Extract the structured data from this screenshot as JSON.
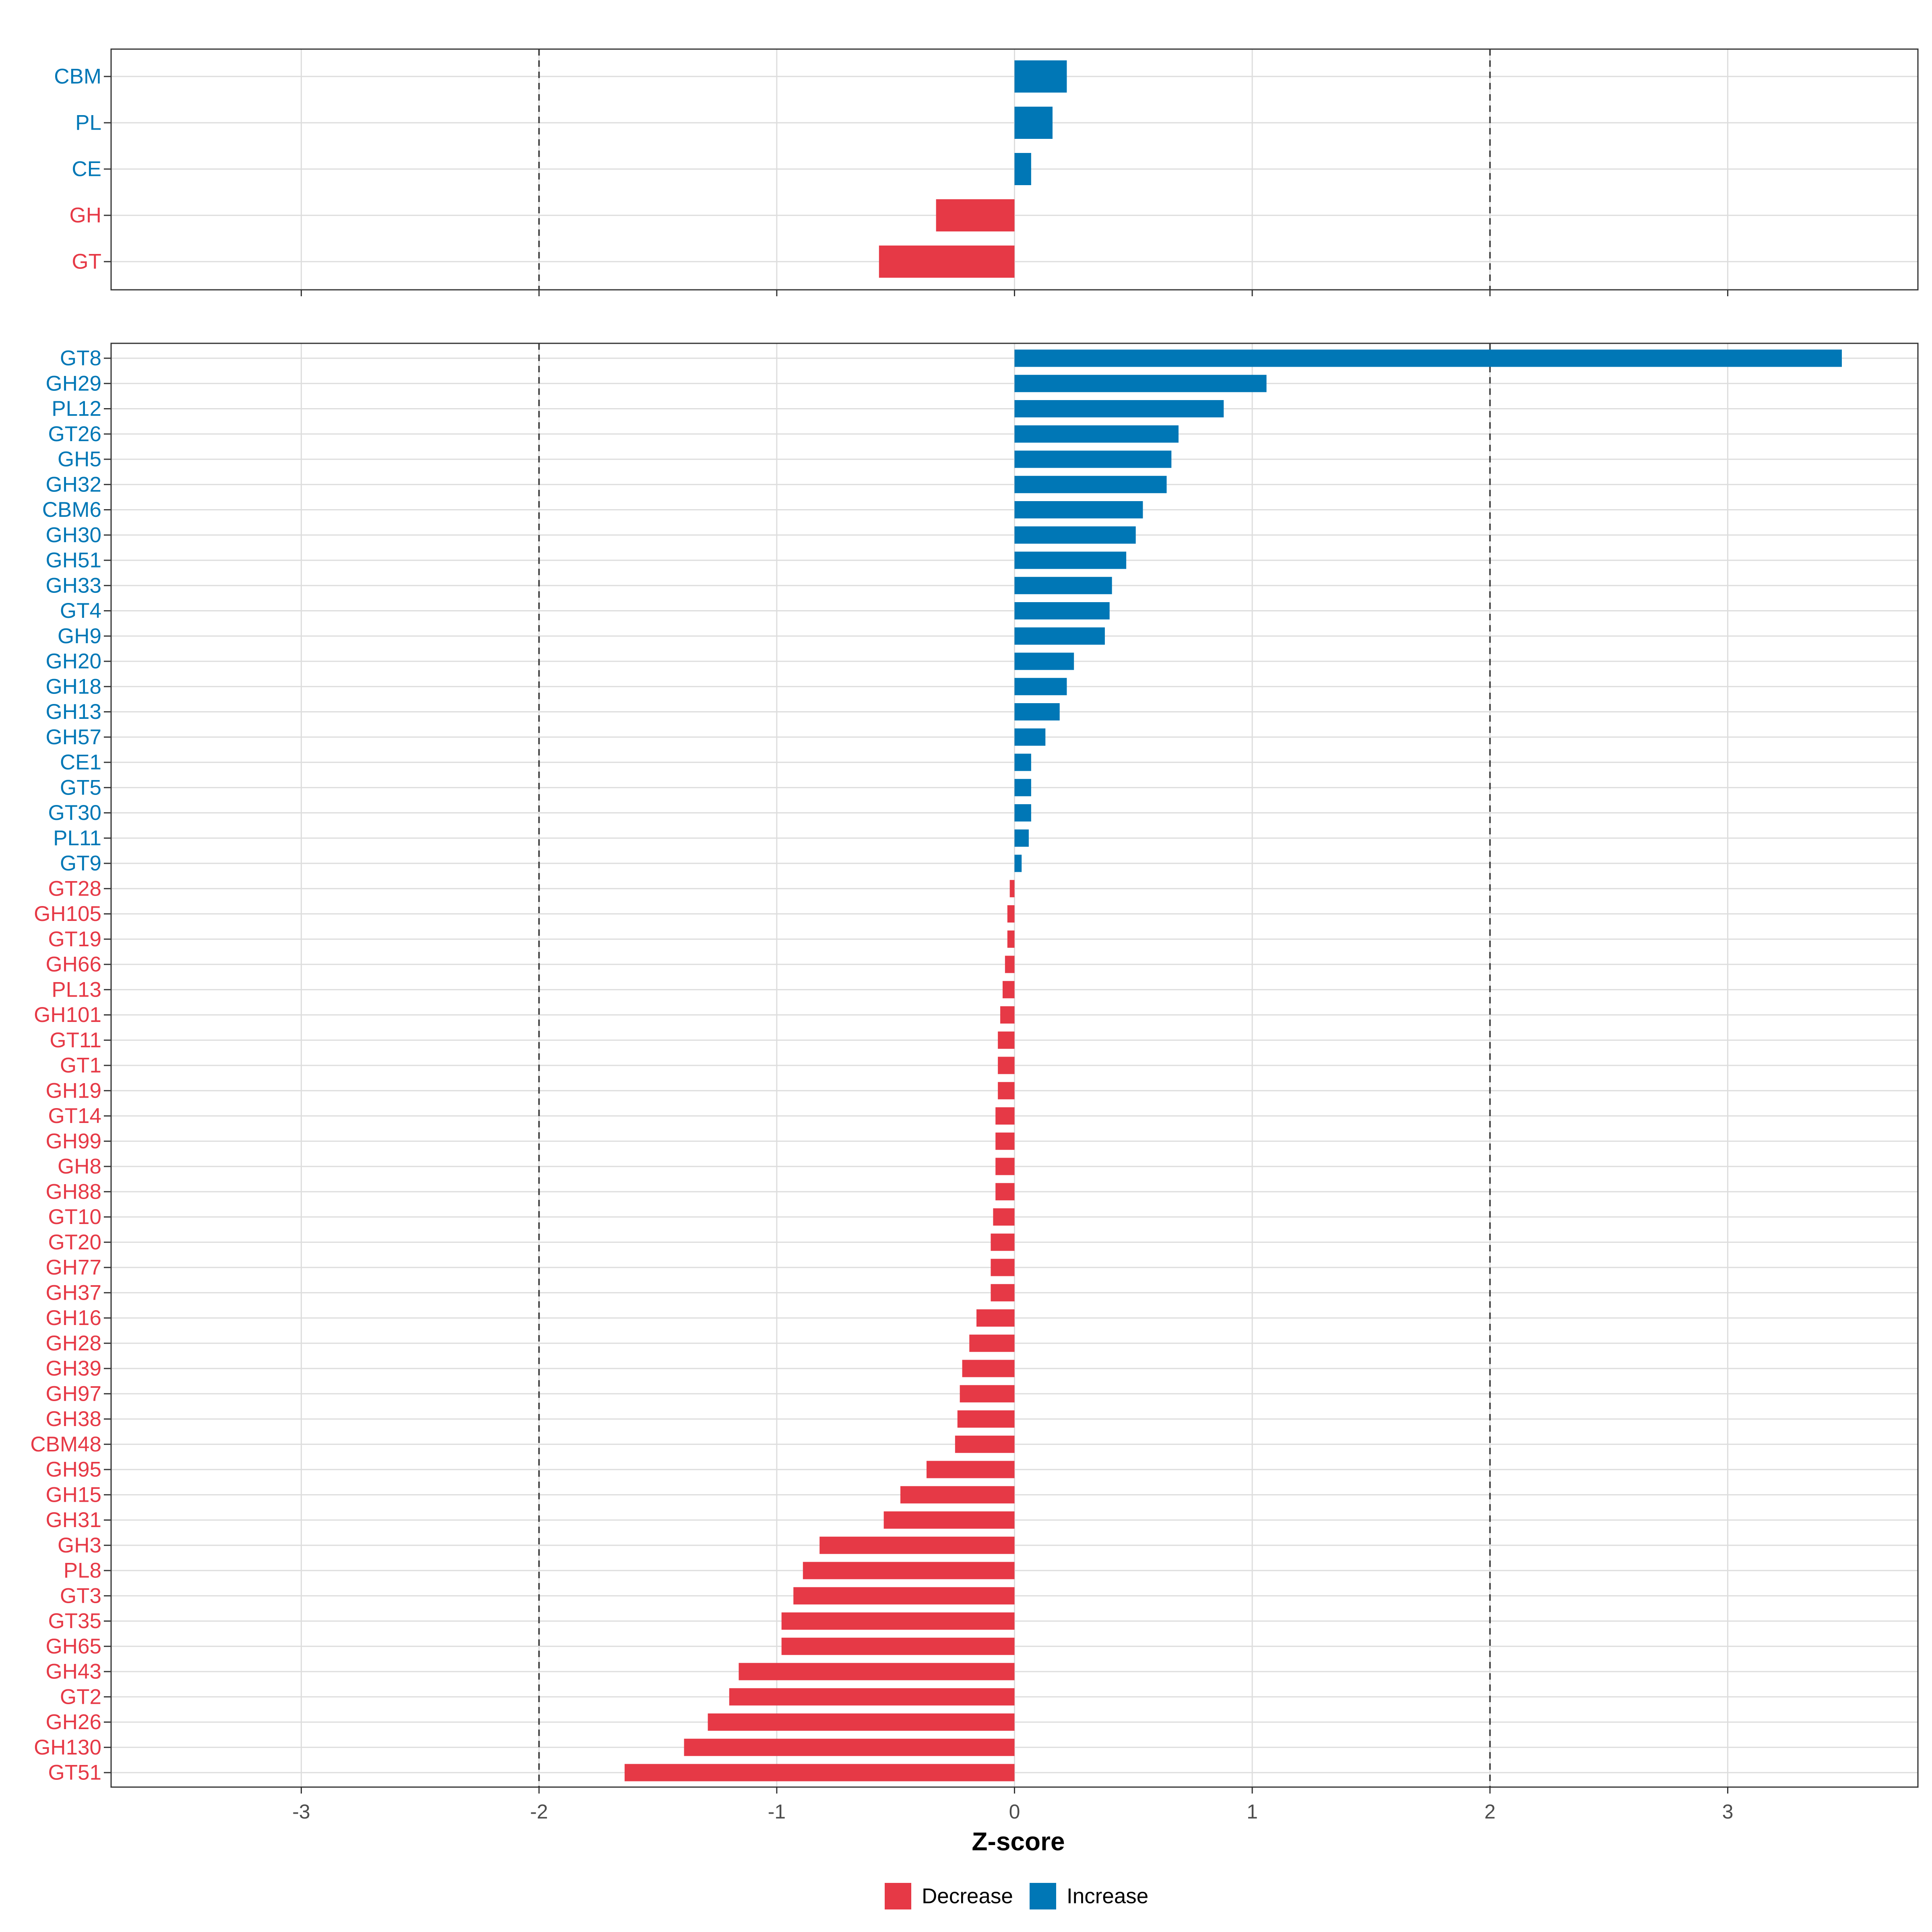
{
  "colors": {
    "decrease": "#E63946",
    "increase": "#0077B6",
    "grid": "#DDDDDD",
    "border": "#333333",
    "dashed": "#444444"
  },
  "chart_data": {
    "type": "bar",
    "orientation": "horizontal",
    "xlabel": "Z-score",
    "xlim": [
      -3.8,
      3.8
    ],
    "xticks": [
      -3,
      -2,
      -1,
      0,
      1,
      2,
      3
    ],
    "reference_lines": [
      -2,
      2
    ],
    "grid": true,
    "legend_position": "bottom",
    "legend": [
      {
        "key": "decrease",
        "label": "Decrease"
      },
      {
        "key": "increase",
        "label": "Increase"
      }
    ],
    "panels": [
      {
        "name": "class",
        "categories": [
          "CBM",
          "PL",
          "CE",
          "GH",
          "GT"
        ],
        "values": [
          0.22,
          0.16,
          0.07,
          -0.33,
          -0.57
        ]
      },
      {
        "name": "family",
        "categories": [
          "GT8",
          "GH29",
          "PL12",
          "GT26",
          "GH5",
          "GH32",
          "CBM6",
          "GH30",
          "GH51",
          "GH33",
          "GT4",
          "GH9",
          "GH20",
          "GH18",
          "GH13",
          "GH57",
          "CE1",
          "GT5",
          "GT30",
          "PL11",
          "GT9",
          "GT28",
          "GH105",
          "GT19",
          "GH66",
          "PL13",
          "GH101",
          "GT11",
          "GT1",
          "GH19",
          "GT14",
          "GH99",
          "GH8",
          "GH88",
          "GT10",
          "GT20",
          "GH77",
          "GH37",
          "GH16",
          "GH28",
          "GH39",
          "GH97",
          "GH38",
          "CBM48",
          "GH95",
          "GH15",
          "GH31",
          "GH3",
          "PL8",
          "GT3",
          "GT35",
          "GH65",
          "GH43",
          "GT2",
          "GH26",
          "GH130",
          "GT51"
        ],
        "values": [
          3.48,
          1.06,
          0.88,
          0.69,
          0.66,
          0.64,
          0.54,
          0.51,
          0.47,
          0.41,
          0.4,
          0.38,
          0.25,
          0.22,
          0.19,
          0.13,
          0.07,
          0.07,
          0.07,
          0.06,
          0.03,
          -0.02,
          -0.03,
          -0.03,
          -0.04,
          -0.05,
          -0.06,
          -0.07,
          -0.07,
          -0.07,
          -0.08,
          -0.08,
          -0.08,
          -0.08,
          -0.09,
          -0.1,
          -0.1,
          -0.1,
          -0.16,
          -0.19,
          -0.22,
          -0.23,
          -0.24,
          -0.25,
          -0.37,
          -0.48,
          -0.55,
          -0.82,
          -0.89,
          -0.93,
          -0.98,
          -0.98,
          -1.16,
          -1.2,
          -1.29,
          -1.39,
          -1.64
        ]
      }
    ]
  }
}
